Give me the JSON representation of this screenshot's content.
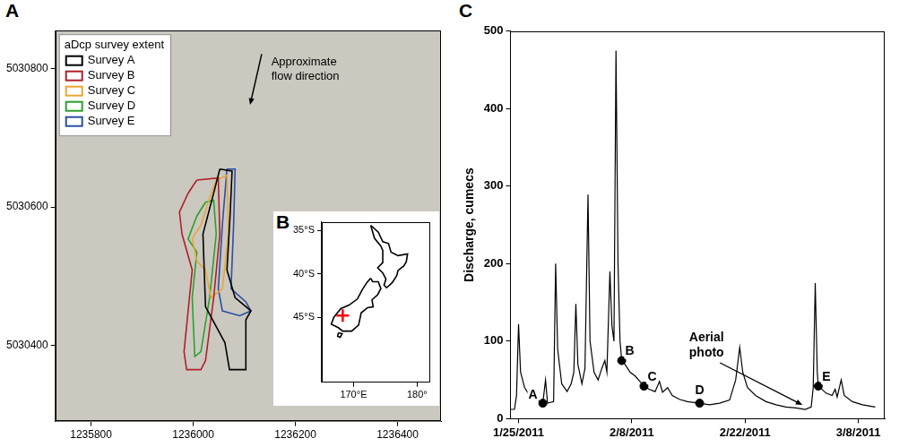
{
  "chart_data": [
    {
      "panel": "A",
      "type": "map",
      "legend": "top-left",
      "legend_title": "aDcp survey extent",
      "annotation": "Approximate flow direction",
      "xlim": [
        1235730,
        1236485
      ],
      "ylim": [
        5030290,
        5030855
      ],
      "xticks": [
        1235800,
        1236000,
        1236200,
        1236400
      ],
      "yticks": [
        5030400,
        5030600,
        5030800
      ],
      "grid": false,
      "series": [
        {
          "name": "Survey A",
          "color": "#000000",
          "x": [
            1236052,
            1236076,
            1236072,
            1236066,
            1236082,
            1236113,
            1236103,
            1236103,
            1236071,
            1236062,
            1236024,
            1236019,
            1236042
          ],
          "values": [
            5030655,
            5030652,
            5030587,
            5030509,
            5030469,
            5030450,
            5030437,
            5030365,
            5030365,
            5030404,
            5030456,
            5030561,
            5030626
          ]
        },
        {
          "name": "Survey B",
          "color": "#b0202a",
          "x": [
            1236007,
            1236049,
            1236052,
            1236040,
            1236024,
            1236015,
            1235987,
            1235982,
            1235998,
            1235978,
            1235973,
            1235990
          ],
          "values": [
            5030639,
            5030642,
            5030561,
            5030469,
            5030378,
            5030365,
            5030365,
            5030391,
            5030509,
            5030561,
            5030593,
            5030620
          ]
        },
        {
          "name": "Survey C",
          "color": "#e8a735",
          "x": [
            1236045,
            1236066,
            1236069,
            1236057,
            1236035,
            1236024,
            1236007,
            1235998,
            1236015,
            1236032
          ],
          "values": [
            5030639,
            5030646,
            5030561,
            5030482,
            5030469,
            5030509,
            5030522,
            5030554,
            5030574,
            5030613
          ]
        },
        {
          "name": "Survey D",
          "color": "#2ca02c",
          "x": [
            1236024,
            1236040,
            1236045,
            1236032,
            1236015,
            1236003,
            1235998,
            1236007,
            1235990,
            1236007
          ],
          "values": [
            5030607,
            5030610,
            5030561,
            5030469,
            5030391,
            5030384,
            5030469,
            5030535,
            5030554,
            5030587
          ]
        },
        {
          "name": "Survey E",
          "color": "#2b4fa3",
          "x": [
            1236066,
            1236082,
            1236079,
            1236074,
            1236103,
            1236113,
            1236091,
            1236057,
            1236049,
            1236057
          ],
          "values": [
            5030655,
            5030655,
            5030574,
            5030482,
            5030463,
            5030450,
            5030443,
            5030450,
            5030482,
            5030574
          ]
        }
      ]
    },
    {
      "panel": "B",
      "type": "map",
      "xlim": [
        165,
        182
      ],
      "ylim": [
        -52.5,
        -34
      ],
      "xticks": [
        {
          "value": 170,
          "label": "170°E"
        },
        {
          "value": 180,
          "label": "180°"
        }
      ],
      "yticks": [
        {
          "value": -35,
          "label": "35°S"
        },
        {
          "value": -40,
          "label": "40°S"
        },
        {
          "value": -45,
          "label": "45°S"
        }
      ],
      "grid": false,
      "series": [
        {
          "color": "#000000",
          "line_style": "solid",
          "x": [
            172.7,
            173.9,
            174.6,
            175.5,
            175.9,
            177.0,
            178.5,
            178.3,
            177.9,
            177.0,
            176.8,
            176.1,
            175.2,
            174.8,
            175.1,
            174.6,
            173.8,
            174.6,
            174.6,
            174.3,
            173.3
          ],
          "values": [
            -34.4,
            -35.2,
            -36.3,
            -36.5,
            -37.5,
            -37.9,
            -37.7,
            -38.6,
            -39.1,
            -39.6,
            -40.2,
            -41.0,
            -41.6,
            -41.3,
            -40.6,
            -39.9,
            -39.3,
            -38.7,
            -37.3,
            -36.8,
            -35.9
          ]
        },
        {
          "color": "#000000",
          "line_style": "solid",
          "x": [
            172.7,
            173.0,
            173.9,
            174.3,
            173.8,
            172.9,
            173.1,
            172.2,
            171.2,
            170.8,
            169.7,
            168.3,
            167.6,
            166.5,
            166.9,
            168.0,
            169.3,
            170.6,
            171.4,
            172.1
          ],
          "values": [
            -40.5,
            -40.9,
            -40.9,
            -41.7,
            -42.4,
            -43.0,
            -43.8,
            -43.9,
            -44.5,
            -45.9,
            -46.6,
            -46.6,
            -46.2,
            -45.8,
            -45.0,
            -44.0,
            -43.6,
            -42.9,
            -41.8,
            -41.0
          ]
        },
        {
          "color": "#000000",
          "line_style": "solid",
          "x": [
            167.6,
            168.2,
            167.9,
            167.5
          ],
          "values": [
            -46.8,
            -46.9,
            -47.3,
            -47.2
          ]
        },
        {
          "color": "#ff0000",
          "marker": "cross",
          "line_style": "none",
          "x": [
            168.3
          ],
          "values": [
            -44.8
          ]
        }
      ]
    },
    {
      "panel": "C",
      "type": "line",
      "y_label": "Discharge, cumecs",
      "color": "#000000",
      "grid": false,
      "xlim": [
        "2011-01-24T00:00",
        "2011-03-11T06:00"
      ],
      "xticks": [
        {
          "value": "2011-01-25T00:00",
          "label": "1/25/2011"
        },
        {
          "value": "2011-02-08T00:00",
          "label": "2/8/2011"
        },
        {
          "value": "2011-02-22T00:00",
          "label": "2/22/2011"
        },
        {
          "value": "2011-03-08T00:00",
          "label": "3/8/2011"
        }
      ],
      "ylim": [
        0,
        500
      ],
      "yticks": [
        0,
        100,
        200,
        300,
        400,
        500
      ],
      "x": [
        "2011-01-24T00:00",
        "2011-01-24T12:00",
        "2011-01-24T18:00",
        "2011-01-25T00:00",
        "2011-01-25T06:00",
        "2011-01-25T18:00",
        "2011-01-26T12:00",
        "2011-01-27T06:00",
        "2011-01-28T00:00",
        "2011-01-28T08:00",
        "2011-01-28T14:00",
        "2011-01-29T08:00",
        "2011-01-29T14:00",
        "2011-01-29T20:00",
        "2011-01-30T08:00",
        "2011-01-31T00:00",
        "2011-01-31T12:00",
        "2011-01-31T20:00",
        "2011-02-01T02:00",
        "2011-02-01T08:00",
        "2011-02-01T20:00",
        "2011-02-02T05:00",
        "2011-02-02T14:00",
        "2011-02-02T20:00",
        "2011-02-03T08:00",
        "2011-02-03T20:00",
        "2011-02-04T07:00",
        "2011-02-04T16:00",
        "2011-02-04T22:00",
        "2011-02-05T07:00",
        "2011-02-05T13:00",
        "2011-02-05T19:00",
        "2011-02-06T01:00",
        "2011-02-06T07:00",
        "2011-02-06T13:00",
        "2011-02-06T18:00",
        "2011-02-07T04:00",
        "2011-02-07T19:00",
        "2011-02-08T10:00",
        "2011-02-09T00:00",
        "2011-02-09T12:00",
        "2011-02-10T03:00",
        "2011-02-10T21:00",
        "2011-02-11T10:00",
        "2011-02-11T19:00",
        "2011-02-12T10:00",
        "2011-02-13T00:00",
        "2011-02-13T21:00",
        "2011-02-14T21:00",
        "2011-02-16T09:00",
        "2011-02-17T14:00",
        "2011-02-18T20:00",
        "2011-02-20T02:00",
        "2011-02-20T20:00",
        "2011-02-21T08:00",
        "2011-02-21T17:00",
        "2011-02-22T07:00",
        "2011-02-23T07:00",
        "2011-02-24T14:00",
        "2011-02-25T20:00",
        "2011-02-27T01:00",
        "2011-02-28T07:00",
        "2011-03-01T10:00",
        "2011-03-02T04:00",
        "2011-03-02T10:00",
        "2011-03-02T16:00",
        "2011-03-02T22:00",
        "2011-03-03T01:00",
        "2011-03-04T00:00",
        "2011-03-04T18:00",
        "2011-03-05T03:00",
        "2011-03-05T09:00",
        "2011-03-05T21:00",
        "2011-03-06T06:00",
        "2011-03-07T06:00",
        "2011-03-08T12:00",
        "2011-03-10T02:00"
      ],
      "values": [
        12,
        12,
        30,
        122,
        60,
        40,
        28,
        24,
        20,
        50,
        20,
        22,
        200,
        90,
        45,
        35,
        45,
        60,
        148,
        70,
        45,
        65,
        289,
        100,
        60,
        50,
        65,
        75,
        60,
        190,
        120,
        100,
        475,
        200,
        100,
        75,
        70,
        60,
        55,
        48,
        42,
        38,
        35,
        48,
        34,
        40,
        30,
        25,
        22,
        20,
        18,
        20,
        24,
        50,
        92,
        60,
        40,
        30,
        22,
        18,
        15,
        14,
        12,
        15,
        40,
        175,
        60,
        42,
        33,
        30,
        38,
        28,
        50,
        30,
        22,
        18,
        15
      ],
      "points": {
        "labels": [
          "A",
          "B",
          "C",
          "D",
          "E"
        ],
        "x": [
          "2011-01-28T00:00",
          "2011-02-06T18:00",
          "2011-02-09T12:00",
          "2011-02-16T09:00",
          "2011-03-03T01:00"
        ],
        "values": [
          20,
          75,
          42,
          20,
          42
        ]
      },
      "annotation": {
        "text": "Aerial photo",
        "x": "2011-03-01T10:00",
        "value": 12
      }
    }
  ]
}
